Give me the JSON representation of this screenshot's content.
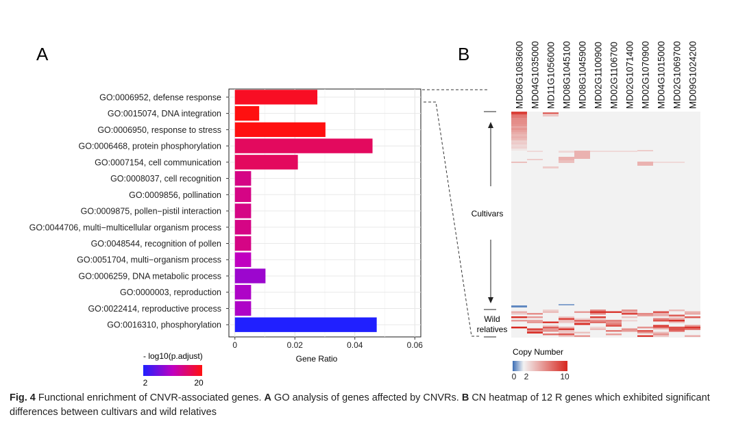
{
  "panels": {
    "a_label": "A",
    "b_label": "B"
  },
  "chart_data": [
    {
      "type": "bar",
      "orientation": "horizontal",
      "panel": "A",
      "categories": [
        "GO:0006952, defense response",
        "GO:0015074, DNA integration",
        "GO:0006950, response to stress",
        "GO:0006468, protein phosphorylation",
        "GO:0007154, cell communication",
        "GO:0008037, cell recognition",
        "GO:0009856, pollination",
        "GO:0009875, pollen−pistil interaction",
        "GO:0044706, multi−multicellular organism process",
        "GO:0048544, recognition of pollen",
        "GO:0051704, multi−organism process",
        "GO:0006259, DNA metabolic process",
        "GO:0000003, reproduction",
        "GO:0022414, reproductive process",
        "GO:0016310, phosphorylation"
      ],
      "values": [
        0.0275,
        0.0081,
        0.0302,
        0.0459,
        0.021,
        0.0054,
        0.0054,
        0.0054,
        0.0054,
        0.0054,
        0.0054,
        0.0102,
        0.0054,
        0.0054,
        0.0473
      ],
      "color_values": [
        19,
        20,
        20,
        16,
        16,
        14,
        14,
        14,
        14,
        14,
        11,
        9,
        10,
        10,
        2
      ],
      "xlabel": "Gene Ratio",
      "xlim": [
        -0.002,
        0.062
      ],
      "xticks": [
        0,
        0.02,
        0.04,
        0.06
      ],
      "xtick_labels": [
        "0",
        "0.02",
        "0.04",
        "0.06"
      ],
      "grid": true,
      "legend": {
        "title": "- log10(p.adjust)",
        "min_label": "2",
        "max_label": "20",
        "color_low": "#2020ff",
        "color_mid": "#c000c0",
        "color_high": "#ff1010"
      }
    },
    {
      "type": "heatmap",
      "panel": "B",
      "columns": [
        "MD08G1083600",
        "MD04G1035000",
        "MD11G1056000",
        "MD08G1045100",
        "MD08G1045900",
        "MD02G1100900",
        "MD02G1106700",
        "MD02G1071400",
        "MD02G1070900",
        "MD04G1015000",
        "MD02G1069700",
        "MD09G1024200"
      ],
      "row_groups": [
        "Cultivars",
        "Wild\nrelatives"
      ],
      "legend": {
        "title": "Copy Number",
        "tick_labels": [
          "0",
          "2",
          "10"
        ],
        "color_low": "#3b6db5",
        "color_mid": "#f2f2f2",
        "color_high": "#d7261e"
      }
    }
  ],
  "caption": {
    "fig_label": "Fig. 4",
    "text1": "  Functional enrichment of CNVR-associated genes. ",
    "bold_a": "A",
    "text2": " GO analysis of genes affected by CNVRs. ",
    "bold_b": "B",
    "text3": " CN heatmap of 12 R genes which exhibited significant differences between cultivars and wild relatives"
  }
}
